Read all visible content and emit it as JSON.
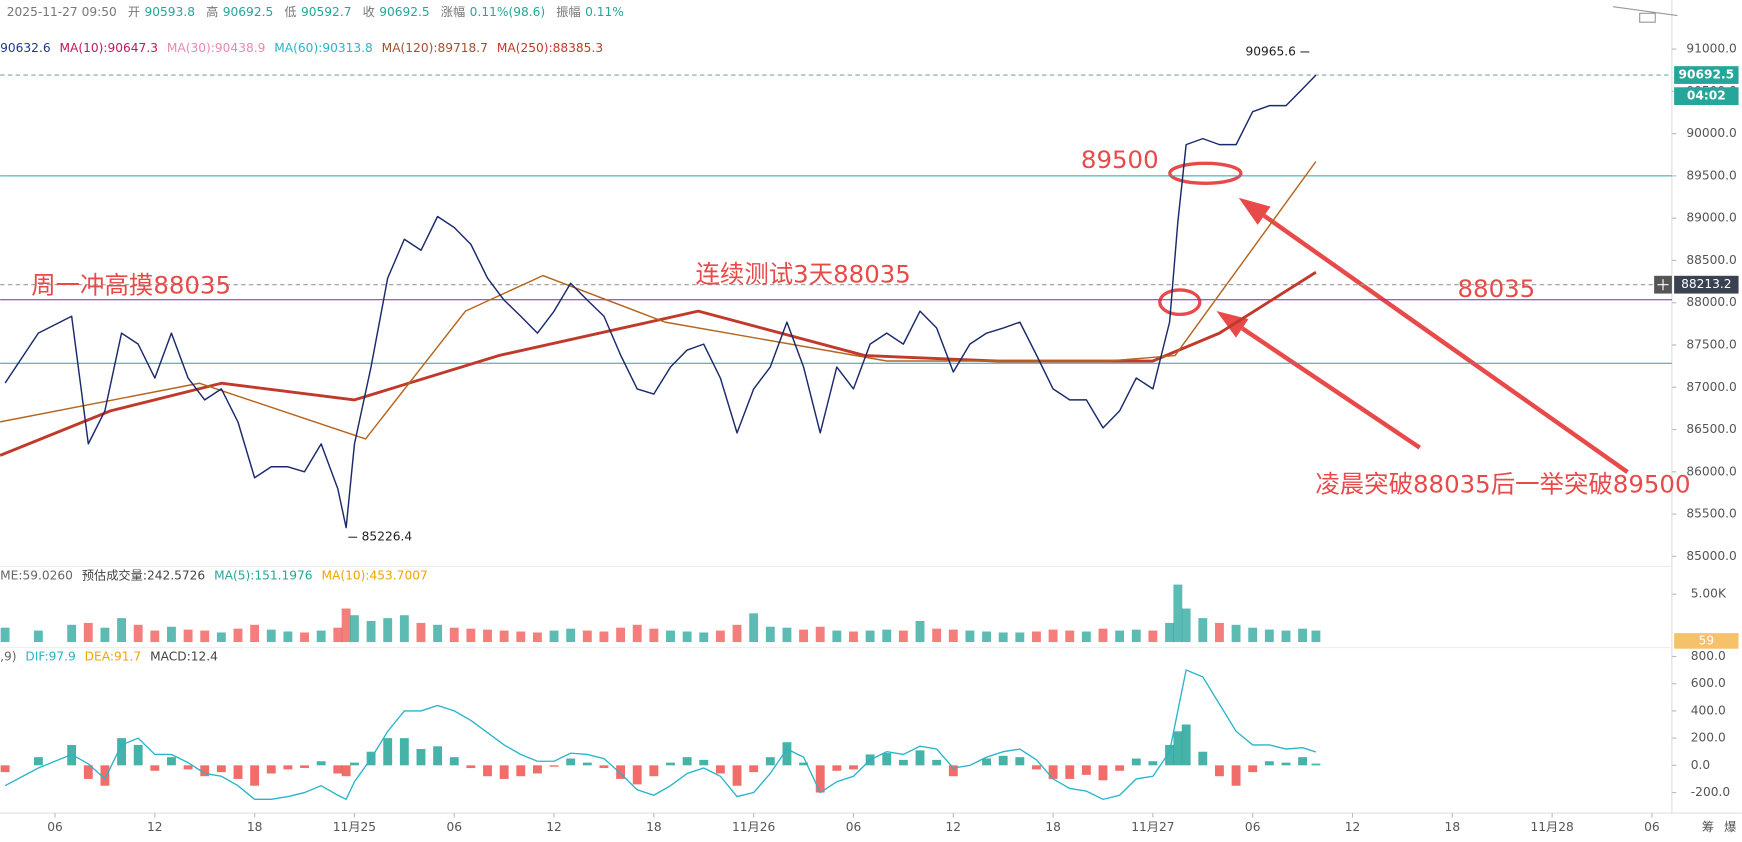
{
  "chart_data": {
    "type": "line",
    "header": {
      "datetime": "2025-11-27 09:50",
      "items": [
        {
          "label": "开",
          "value": "90593.8"
        },
        {
          "label": "高",
          "value": "90692.5"
        },
        {
          "label": "低",
          "value": "90592.7"
        },
        {
          "label": "收",
          "value": "90692.5"
        },
        {
          "label": "涨幅",
          "value": "0.11%(98.6)"
        },
        {
          "label": "振幅",
          "value": "0.11%"
        }
      ]
    },
    "ma_legend": [
      {
        "text": "90632.6",
        "color": "#1e3a8a"
      },
      {
        "text": "MA(10):90647.3",
        "color": "#c2185b"
      },
      {
        "text": "MA(30):90438.9",
        "color": "#e889b0"
      },
      {
        "text": "MA(60):90313.8",
        "color": "#26b5c9"
      },
      {
        "text": "MA(120):89718.7",
        "color": "#a0522d"
      },
      {
        "text": "MA(250):88385.3",
        "color": "#c0392b"
      }
    ],
    "xlim": [
      2.7,
      103.2
    ],
    "xticks": [
      {
        "value": 6,
        "label": "06"
      },
      {
        "value": 12,
        "label": "12"
      },
      {
        "value": 18,
        "label": "18"
      },
      {
        "value": 24,
        "label": "11月25"
      },
      {
        "value": 30,
        "label": "06"
      },
      {
        "value": 36,
        "label": "12"
      },
      {
        "value": 42,
        "label": "18"
      },
      {
        "value": 48,
        "label": "11月26"
      },
      {
        "value": 54,
        "label": "06"
      },
      {
        "value": 60,
        "label": "12"
      },
      {
        "value": 66,
        "label": "18"
      },
      {
        "value": 72,
        "label": "11月27"
      },
      {
        "value": 78,
        "label": "06"
      },
      {
        "value": 84,
        "label": "12"
      },
      {
        "value": 90,
        "label": "18"
      },
      {
        "value": 96,
        "label": "11月28"
      },
      {
        "value": 102,
        "label": "06"
      }
    ],
    "ylim": [
      84880,
      91580
    ],
    "yticks": [
      {
        "value": 91000,
        "label": "91000.0"
      },
      {
        "value": 90500,
        "label": "90500.0"
      },
      {
        "value": 90000,
        "label": "90000.0"
      },
      {
        "value": 89500,
        "label": "89500.0"
      },
      {
        "value": 89000,
        "label": "89000.0"
      },
      {
        "value": 88500,
        "label": "88500.0"
      },
      {
        "value": 88000,
        "label": "88000.0"
      },
      {
        "value": 87500,
        "label": "87500.0"
      },
      {
        "value": 87000,
        "label": "87000.0"
      },
      {
        "value": 86500,
        "label": "86500.0"
      },
      {
        "value": 86000,
        "label": "86000.0"
      },
      {
        "value": 85500,
        "label": "85500.0"
      },
      {
        "value": 85000,
        "label": "85000.0"
      }
    ],
    "series": [
      {
        "color": "#1a2a6c",
        "width": 1.3,
        "x": [
          3,
          5,
          7,
          8,
          9,
          10,
          11,
          12,
          13,
          14,
          15,
          16,
          17,
          18,
          19,
          20,
          21,
          22,
          23,
          23.5,
          24,
          25,
          26,
          27,
          28,
          29,
          30,
          31,
          32,
          33,
          34,
          35,
          36,
          37,
          38,
          39,
          40,
          41,
          42,
          43,
          44,
          45,
          46,
          47,
          48,
          49,
          50,
          51,
          52,
          53,
          54,
          55,
          56,
          57,
          58,
          59,
          60,
          61,
          62,
          63,
          64,
          65,
          66,
          67,
          68,
          69,
          70,
          71,
          72,
          73,
          73.5,
          74,
          75,
          76,
          77,
          78,
          79,
          80,
          81,
          81.8
        ],
        "values": [
          87050,
          87640,
          87840,
          86330,
          86720,
          87640,
          87510,
          87110,
          87640,
          87110,
          86850,
          86980,
          86590,
          85930,
          86060,
          86060,
          86000,
          86330,
          85800,
          85340,
          86330,
          87240,
          88290,
          88750,
          88620,
          89020,
          88890,
          88690,
          88290,
          88030,
          87840,
          87640,
          87900,
          88230,
          88030,
          87840,
          87380,
          86980,
          86920,
          87240,
          87440,
          87510,
          87110,
          86460,
          86980,
          87240,
          87770,
          87240,
          86460,
          87240,
          86980,
          87510,
          87640,
          87510,
          87900,
          87700,
          87180,
          87510,
          87640,
          87700,
          87770,
          87380,
          86980,
          86850,
          86850,
          86520,
          86720,
          87110,
          86980,
          87770,
          88950,
          89870,
          89940,
          89870,
          89870,
          90260,
          90330,
          90330,
          90530,
          90692.5
        ]
      },
      {
        "color": "#b5651d",
        "width": 1.3,
        "x": [
          2.7,
          14.67,
          24.67,
          30.67,
          35.33,
          42.67,
          56,
          69.33,
          73.33,
          81.8
        ],
        "values": [
          86590,
          87048,
          86390,
          87900,
          88320,
          87770,
          87310,
          87310,
          87375,
          89670
        ]
      },
      {
        "color": "#c0392b",
        "width": 2.6,
        "x": [
          2.7,
          9.33,
          16,
          24,
          32.67,
          44.67,
          54.67,
          62.67,
          72,
          76,
          81.8
        ],
        "values": [
          86194,
          86720,
          87048,
          86850,
          87375,
          87900,
          87375,
          87310,
          87310,
          87640,
          88360
        ]
      }
    ],
    "levels": [
      {
        "value": 89500,
        "color": "#26a0b8"
      },
      {
        "value": 88035,
        "color": "#8e24aa"
      },
      {
        "value": 87284,
        "color": "#26a0b8"
      }
    ],
    "current_price": 90692.5,
    "countdown": "04:02",
    "crosshair_price": 88213.2,
    "high_mark": 90965.6,
    "low_mark": 85226.4,
    "annotations": [
      {
        "text": "89500"
      },
      {
        "text": "周一冲高摸88035"
      },
      {
        "text": "连续测试3天88035"
      },
      {
        "text": "88035"
      },
      {
        "text": "凌晨突破88035后一举突破89500"
      }
    ],
    "volume": {
      "legend": [
        {
          "text": "ME:59.0260",
          "color": "#666"
        },
        {
          "text": "预估成交量:242.5726",
          "color": "#444"
        },
        {
          "text": "MA(5):151.1976",
          "color": "#26a69a"
        },
        {
          "text": "MA(10):453.7007",
          "color": "#f0a500"
        }
      ],
      "ylim": [
        0,
        5800
      ],
      "yticks": [
        {
          "value": 5000,
          "label": "5.00K"
        }
      ],
      "badge": 59,
      "values": [
        1500,
        1200,
        1800,
        2000,
        1500,
        2500,
        1800,
        1200,
        1600,
        1300,
        1200,
        1000,
        1400,
        1800,
        1300,
        1100,
        1000,
        1200,
        1500,
        3500,
        2800,
        2200,
        2500,
        2800,
        2000,
        1800,
        1500,
        1400,
        1300,
        1200,
        1100,
        1000,
        1200,
        1400,
        1200,
        1100,
        1500,
        1800,
        1400,
        1200,
        1100,
        1000,
        1200,
        1800,
        3000,
        1600,
        1500,
        1300,
        1600,
        1200,
        1100,
        1200,
        1300,
        1200,
        2200,
        1400,
        1300,
        1200,
        1100,
        1000,
        1000,
        1100,
        1300,
        1200,
        1100,
        1400,
        1200,
        1300,
        1200,
        2000,
        6000,
        3500,
        2500,
        2000,
        1800,
        1500,
        1300,
        1200,
        1400,
        1200
      ]
    },
    "macd": {
      "legend": [
        {
          "text": ",9)",
          "color": "#666"
        },
        {
          "text": "DIF:97.9",
          "color": "#26b5c9"
        },
        {
          "text": "DEA:91.7",
          "color": "#f0a500"
        },
        {
          "text": "MACD:12.4",
          "color": "#444"
        }
      ],
      "ylim": [
        -335,
        849
      ],
      "yticks": [
        {
          "value": 800,
          "label": "800.0"
        },
        {
          "value": 600,
          "label": "600.0"
        },
        {
          "value": 400,
          "label": "400.0"
        },
        {
          "value": 200,
          "label": "200.0"
        },
        {
          "value": 0,
          "label": "0.0"
        },
        {
          "value": -200,
          "label": "-200.0"
        }
      ],
      "hist": [
        -50,
        60,
        150,
        -100,
        -150,
        200,
        150,
        -40,
        60,
        -30,
        -80,
        -50,
        -100,
        -150,
        -60,
        -30,
        -20,
        30,
        -60,
        -80,
        20,
        100,
        200,
        200,
        120,
        140,
        60,
        -20,
        -80,
        -100,
        -80,
        -60,
        -10,
        50,
        20,
        -20,
        -100,
        -140,
        -80,
        20,
        60,
        40,
        -60,
        -150,
        -50,
        60,
        170,
        20,
        -200,
        -40,
        -30,
        80,
        90,
        40,
        110,
        40,
        -80,
        0,
        50,
        70,
        60,
        -30,
        -100,
        -100,
        -70,
        -110,
        -40,
        50,
        30,
        150,
        250,
        300,
        100,
        -80,
        -150,
        -50,
        30,
        20,
        60,
        12.4
      ],
      "dif": [
        -150,
        -20,
        80,
        10,
        -100,
        150,
        200,
        80,
        80,
        20,
        -60,
        -80,
        -150,
        -250,
        -250,
        -230,
        -200,
        -150,
        -220,
        -250,
        -120,
        50,
        250,
        400,
        400,
        440,
        400,
        330,
        240,
        150,
        80,
        30,
        30,
        90,
        80,
        50,
        -60,
        -180,
        -220,
        -150,
        -60,
        -20,
        -80,
        -230,
        -200,
        -60,
        120,
        60,
        -200,
        -120,
        -80,
        40,
        100,
        80,
        140,
        120,
        -20,
        0,
        60,
        100,
        120,
        40,
        -100,
        -170,
        -190,
        -250,
        -220,
        -100,
        -80,
        100,
        400,
        700,
        650,
        450,
        250,
        150,
        150,
        120,
        130,
        97.9
      ]
    },
    "toolbar": [
      "筹",
      "爆"
    ]
  }
}
